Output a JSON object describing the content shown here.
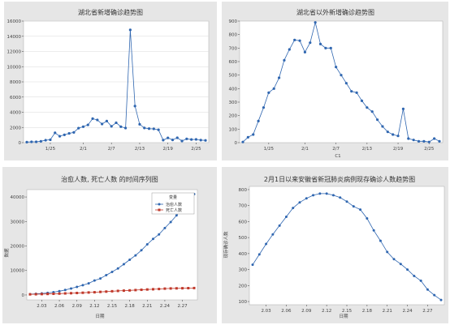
{
  "colors": {
    "blue": "#2f66b0",
    "red": "#c0392b",
    "panel_bg": "#e6e6e6"
  },
  "chart_data": [
    {
      "id": "c1",
      "type": "line",
      "title": "湖北省新增确诊趋势图",
      "xlabel": "",
      "ylabel": "",
      "x": [
        "1/20",
        "1/21",
        "1/22",
        "1/23",
        "1/24",
        "1/25",
        "1/26",
        "1/27",
        "1/28",
        "1/29",
        "1/30",
        "1/31",
        "2/1",
        "2/2",
        "2/3",
        "2/4",
        "2/5",
        "2/6",
        "2/7",
        "2/8",
        "2/9",
        "2/10",
        "2/11",
        "2/12",
        "2/13",
        "2/14",
        "2/15",
        "2/16",
        "2/17",
        "2/18",
        "2/19",
        "2/20",
        "2/21",
        "2/22",
        "2/23",
        "2/24",
        "2/25",
        "2/26",
        "2/27"
      ],
      "x_ticks": [
        "1/25",
        "2/1",
        "2/7",
        "2/13",
        "2/19",
        "2/25"
      ],
      "y_ticks": [
        0,
        2000,
        4000,
        6000,
        8000,
        10000,
        12000,
        14000,
        16000
      ],
      "ylim": [
        0,
        16000
      ],
      "series": [
        {
          "values": [
            70,
            105,
            105,
            180,
            320,
            380,
            1290,
            840,
            1030,
            1220,
            1350,
            1910,
            2100,
            2340,
            3160,
            2990,
            2450,
            2840,
            2150,
            2620,
            2100,
            1920,
            14840,
            4820,
            2420,
            1930,
            1840,
            1810,
            1690,
            330,
            630,
            360,
            640,
            220,
            500,
            410,
            430,
            330,
            300
          ]
        }
      ]
    },
    {
      "id": "c2",
      "type": "line",
      "title": "湖北省以外新增确诊趋势图",
      "xlabel": "C1",
      "ylabel": "",
      "x": [
        "1/20",
        "1/21",
        "1/22",
        "1/23",
        "1/24",
        "1/25",
        "1/26",
        "1/27",
        "1/28",
        "1/29",
        "1/30",
        "1/31",
        "2/1",
        "2/2",
        "2/3",
        "2/4",
        "2/5",
        "2/6",
        "2/7",
        "2/8",
        "2/9",
        "2/10",
        "2/11",
        "2/12",
        "2/13",
        "2/14",
        "2/15",
        "2/16",
        "2/17",
        "2/18",
        "2/19",
        "2/20",
        "2/21",
        "2/22",
        "2/23",
        "2/24",
        "2/25",
        "2/26",
        "2/27"
      ],
      "x_ticks": [
        "1/25",
        "2/1",
        "2/7",
        "2/13",
        "2/19",
        "2/25"
      ],
      "y_ticks": [
        0,
        100,
        200,
        300,
        400,
        500,
        600,
        700,
        800,
        900
      ],
      "ylim": [
        0,
        900
      ],
      "series": [
        {
          "values": [
            5,
            40,
            60,
            160,
            260,
            370,
            400,
            480,
            610,
            690,
            760,
            755,
            670,
            740,
            890,
            730,
            700,
            700,
            560,
            500,
            440,
            380,
            370,
            310,
            260,
            230,
            170,
            120,
            80,
            60,
            50,
            250,
            30,
            20,
            10,
            10,
            5,
            30,
            10
          ]
        }
      ]
    },
    {
      "id": "c3",
      "type": "line",
      "title": "治愈人数, 死亡人数 的时间序列图",
      "xlabel": "日期",
      "ylabel": "数据",
      "legend_title": "变量",
      "legend_position": "top-right",
      "x_ticks": [
        "2.03",
        "2.06",
        "2.09",
        "2.12",
        "2.15",
        "2.18",
        "2.21",
        "2.24",
        "2.27"
      ],
      "x_tick_days": [
        3,
        6,
        9,
        12,
        15,
        18,
        21,
        24,
        27
      ],
      "x_days": [
        1,
        2,
        3,
        4,
        5,
        6,
        7,
        8,
        9,
        10,
        11,
        12,
        13,
        14,
        15,
        16,
        17,
        18,
        19,
        20,
        21,
        22,
        23,
        24,
        25,
        26,
        27,
        28,
        29
      ],
      "y_ticks": [
        0,
        10000,
        20000,
        30000,
        40000
      ],
      "ylim": [
        -2000,
        43000
      ],
      "series": [
        {
          "name": "治愈人数",
          "values": [
            330,
            480,
            630,
            850,
            1150,
            1540,
            2050,
            2650,
            3280,
            3990,
            4740,
            5910,
            6720,
            8100,
            9420,
            10840,
            12560,
            14380,
            16160,
            18260,
            20660,
            22890,
            24730,
            27320,
            29750,
            32490,
            35410,
            38100,
            41200
          ]
        },
        {
          "name": "死亡人数",
          "values": [
            260,
            300,
            360,
            420,
            490,
            560,
            640,
            720,
            810,
            910,
            1020,
            1110,
            1260,
            1380,
            1520,
            1660,
            1770,
            1870,
            2000,
            2120,
            2240,
            2340,
            2440,
            2590,
            2660,
            2710,
            2750,
            2790,
            2830
          ]
        }
      ]
    },
    {
      "id": "c4",
      "type": "line",
      "title": "2月1日以来安徽省新冠肺炎病例现存确诊人数趋势图",
      "xlabel": "日期",
      "ylabel": "现存确诊人数",
      "x_ticks": [
        "2.03",
        "2.06",
        "2.09",
        "2.12",
        "2.15",
        "2.18",
        "2.21",
        "2.24",
        "2.27"
      ],
      "x_tick_days": [
        3,
        6,
        9,
        12,
        15,
        18,
        21,
        24,
        27
      ],
      "x_days": [
        1,
        2,
        3,
        4,
        5,
        6,
        7,
        8,
        9,
        10,
        11,
        12,
        13,
        14,
        15,
        16,
        17,
        18,
        19,
        20,
        21,
        22,
        23,
        24,
        25,
        26,
        27,
        28,
        29
      ],
      "y_ticks": [
        100,
        200,
        300,
        400,
        500,
        600,
        700,
        800
      ],
      "ylim": [
        80,
        820
      ],
      "series": [
        {
          "values": [
            330,
            395,
            460,
            520,
            575,
            630,
            685,
            720,
            745,
            765,
            775,
            775,
            765,
            750,
            725,
            695,
            675,
            620,
            545,
            480,
            410,
            365,
            335,
            300,
            260,
            230,
            175,
            140,
            110
          ]
        }
      ]
    }
  ]
}
